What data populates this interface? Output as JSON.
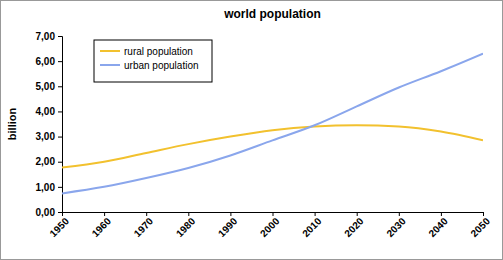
{
  "chart_data": {
    "type": "line",
    "title": "world population",
    "y_label": "billion",
    "x": [
      1950,
      1960,
      1970,
      1980,
      1990,
      2000,
      2010,
      2020,
      2030,
      2040,
      2050
    ],
    "series": [
      {
        "name": "rural population",
        "color": "#f2c12e",
        "values": [
          1.77,
          2.0,
          2.35,
          2.7,
          3.0,
          3.25,
          3.4,
          3.45,
          3.4,
          3.2,
          2.85
        ]
      },
      {
        "name": "urban population",
        "color": "#8aa6ec",
        "values": [
          0.74,
          1.0,
          1.35,
          1.75,
          2.25,
          2.85,
          3.45,
          4.2,
          4.95,
          5.6,
          6.3
        ]
      }
    ],
    "xlim": [
      1950,
      2050
    ],
    "xticks": [
      1950,
      1960,
      1970,
      1980,
      1990,
      2000,
      2010,
      2020,
      2030,
      2040,
      2050
    ],
    "ylim": [
      0,
      7
    ],
    "yticks": [
      {
        "value": 0,
        "label": "0,00"
      },
      {
        "value": 1,
        "label": "1,00"
      },
      {
        "value": 2,
        "label": "2,00"
      },
      {
        "value": 3,
        "label": "3,00"
      },
      {
        "value": 4,
        "label": "4,00"
      },
      {
        "value": 5,
        "label": "5,00"
      },
      {
        "value": 6,
        "label": "6,00"
      },
      {
        "value": 7,
        "label": "7,00"
      }
    ],
    "grid": false,
    "legend": "top-left"
  }
}
